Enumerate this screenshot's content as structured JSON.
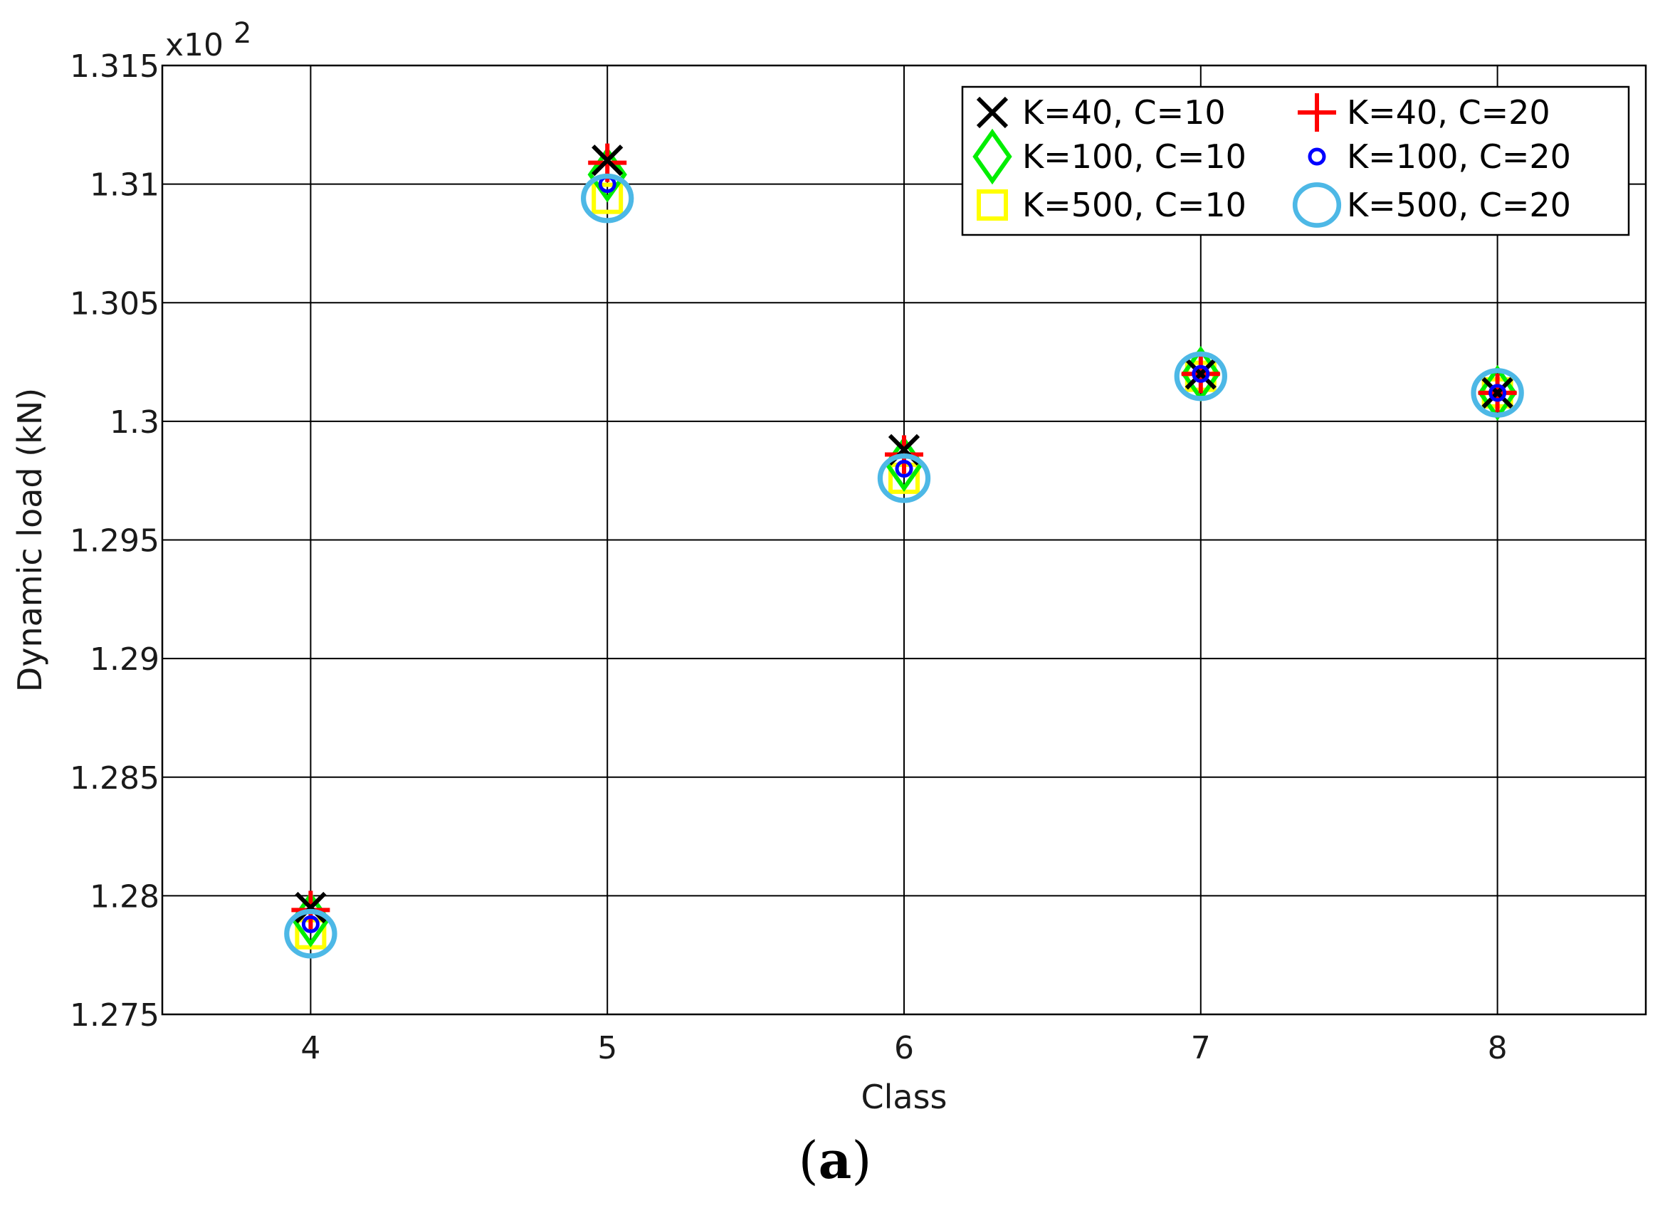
{
  "chart_data": {
    "type": "scatter",
    "title": "",
    "xlabel": "Class",
    "ylabel": "Dynamic load (kN)",
    "y_multiplier_label": "x10",
    "y_multiplier_exponent": "2",
    "x_ticks": [
      "4",
      "5",
      "6",
      "7",
      "8"
    ],
    "y_ticks": [
      "1.275",
      "1.28",
      "1.285",
      "1.29",
      "1.295",
      "1.3",
      "1.305",
      "1.31",
      "1.315"
    ],
    "xlim": [
      3.5,
      8.5
    ],
    "ylim": [
      1.275,
      1.315
    ],
    "grid": true,
    "legend_position": "top-right",
    "caption_letter": "a",
    "series": [
      {
        "name": "K=40, C=10",
        "marker": "x",
        "color": "#000000",
        "x": [
          4,
          5,
          6,
          7,
          8
        ],
        "y": [
          1.2795,
          1.311,
          1.2988,
          1.302,
          1.3012
        ]
      },
      {
        "name": "K=40, C=20",
        "marker": "plus",
        "color": "#ff0000",
        "x": [
          4,
          5,
          6,
          7,
          8
        ],
        "y": [
          1.2794,
          1.3109,
          1.2986,
          1.302,
          1.3012
        ]
      },
      {
        "name": "K=100, C=10",
        "marker": "diamond",
        "color": "#00ee00",
        "x": [
          4,
          5,
          6,
          7,
          8
        ],
        "y": [
          1.279,
          1.3104,
          1.2982,
          1.302,
          1.3012
        ]
      },
      {
        "name": "K=100, C=20",
        "marker": "dot",
        "color": "#0000ff",
        "x": [
          4,
          5,
          6,
          7,
          8
        ],
        "y": [
          1.2788,
          1.31,
          1.298,
          1.302,
          1.3012
        ]
      },
      {
        "name": "K=500, C=10",
        "marker": "square",
        "color": "#ffff00",
        "x": [
          4,
          5,
          6,
          7,
          8
        ],
        "y": [
          1.2784,
          1.3094,
          1.2976,
          1.3019,
          1.3012
        ]
      },
      {
        "name": "K=500, C=20",
        "marker": "circle",
        "color": "#4db8e6",
        "x": [
          4,
          5,
          6,
          7,
          8
        ],
        "y": [
          1.2784,
          1.3094,
          1.2976,
          1.3019,
          1.3012
        ]
      }
    ]
  }
}
